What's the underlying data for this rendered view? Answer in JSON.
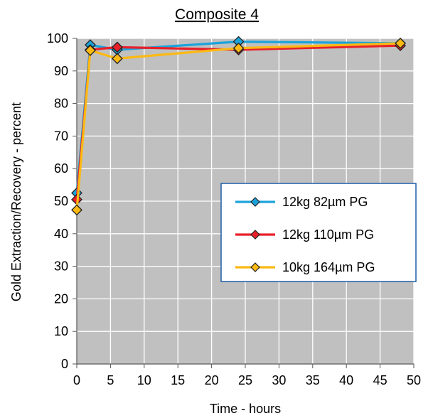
{
  "chart_data": {
    "type": "line",
    "title": "Composite 4",
    "xlabel": "Time - hours",
    "ylabel": "Gold Extraction/Recovery - percent",
    "xlim": [
      0,
      50
    ],
    "ylim": [
      0,
      100
    ],
    "xticks": [
      0,
      5,
      10,
      15,
      20,
      25,
      30,
      35,
      40,
      45,
      50
    ],
    "yticks": [
      0,
      10,
      20,
      30,
      40,
      50,
      60,
      70,
      80,
      90,
      100
    ],
    "grid": true,
    "legend_position": "right",
    "plot_background": "#c0c0c0",
    "grid_color": "#ffffff",
    "series": [
      {
        "name": "12kg 82µm PG",
        "color": "#1aa3db",
        "x": [
          0,
          2,
          6,
          24,
          48
        ],
        "y": [
          52.5,
          98,
          96.5,
          99,
          98.5
        ]
      },
      {
        "name": "12kg 110µm PG",
        "color": "#e8202a",
        "x": [
          0,
          2,
          6,
          24,
          48
        ],
        "y": [
          50.5,
          96.5,
          97.3,
          96.5,
          97.8
        ]
      },
      {
        "name": "10kg 164µm PG",
        "color": "#fcb913",
        "x": [
          0,
          2,
          6,
          24,
          48
        ],
        "y": [
          47.3,
          96.3,
          93.8,
          97,
          98.5
        ]
      }
    ]
  }
}
